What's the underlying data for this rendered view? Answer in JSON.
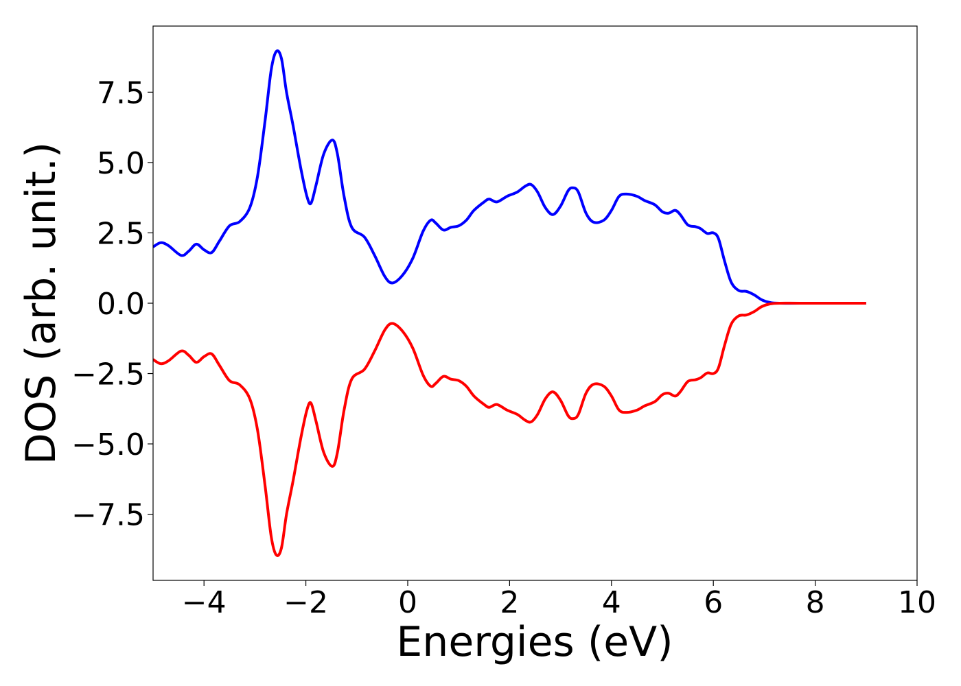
{
  "chart_data": {
    "type": "line",
    "xlabel": "Energies (eV)",
    "ylabel": "DOS (arb. unit.)",
    "xlim": [
      -5,
      10
    ],
    "ylim": [
      -9.85,
      9.85
    ],
    "xticks": [
      -4,
      -2,
      0,
      2,
      4,
      6,
      8,
      10
    ],
    "xtick_labels": [
      "−4",
      "−2",
      "0",
      "2",
      "4",
      "6",
      "8",
      "10"
    ],
    "yticks": [
      7.5,
      5.0,
      2.5,
      0.0,
      -2.5,
      -5.0,
      -7.5
    ],
    "ytick_labels": [
      "7.5",
      "5.0",
      "2.5",
      "0.0",
      "−2.5",
      "−5.0",
      "−7.5"
    ],
    "grid": false,
    "series": [
      {
        "color": "#0000ff",
        "points": [
          [
            -5.0,
            2.0
          ],
          [
            -4.85,
            2.15
          ],
          [
            -4.7,
            2.05
          ],
          [
            -4.45,
            1.7
          ],
          [
            -4.3,
            1.85
          ],
          [
            -4.15,
            2.1
          ],
          [
            -4.0,
            1.9
          ],
          [
            -3.85,
            1.8
          ],
          [
            -3.7,
            2.2
          ],
          [
            -3.5,
            2.75
          ],
          [
            -3.3,
            2.9
          ],
          [
            -3.1,
            3.4
          ],
          [
            -2.95,
            4.5
          ],
          [
            -2.8,
            6.5
          ],
          [
            -2.68,
            8.3
          ],
          [
            -2.58,
            8.95
          ],
          [
            -2.48,
            8.7
          ],
          [
            -2.38,
            7.5
          ],
          [
            -2.25,
            6.3
          ],
          [
            -2.1,
            4.8
          ],
          [
            -1.98,
            3.8
          ],
          [
            -1.9,
            3.55
          ],
          [
            -1.8,
            4.2
          ],
          [
            -1.65,
            5.3
          ],
          [
            -1.48,
            5.8
          ],
          [
            -1.38,
            5.3
          ],
          [
            -1.25,
            3.8
          ],
          [
            -1.1,
            2.7
          ],
          [
            -0.85,
            2.35
          ],
          [
            -0.65,
            1.7
          ],
          [
            -0.45,
            0.95
          ],
          [
            -0.3,
            0.72
          ],
          [
            -0.1,
            1.0
          ],
          [
            0.1,
            1.6
          ],
          [
            0.3,
            2.55
          ],
          [
            0.45,
            2.95
          ],
          [
            0.55,
            2.85
          ],
          [
            0.7,
            2.6
          ],
          [
            0.85,
            2.7
          ],
          [
            1.0,
            2.75
          ],
          [
            1.15,
            2.95
          ],
          [
            1.3,
            3.3
          ],
          [
            1.5,
            3.6
          ],
          [
            1.6,
            3.7
          ],
          [
            1.75,
            3.6
          ],
          [
            1.95,
            3.8
          ],
          [
            2.15,
            3.95
          ],
          [
            2.3,
            4.15
          ],
          [
            2.42,
            4.22
          ],
          [
            2.55,
            3.95
          ],
          [
            2.7,
            3.4
          ],
          [
            2.85,
            3.15
          ],
          [
            3.0,
            3.45
          ],
          [
            3.15,
            4.0
          ],
          [
            3.25,
            4.1
          ],
          [
            3.35,
            3.95
          ],
          [
            3.5,
            3.2
          ],
          [
            3.65,
            2.88
          ],
          [
            3.85,
            2.95
          ],
          [
            4.0,
            3.3
          ],
          [
            4.15,
            3.8
          ],
          [
            4.3,
            3.88
          ],
          [
            4.5,
            3.8
          ],
          [
            4.65,
            3.65
          ],
          [
            4.85,
            3.5
          ],
          [
            5.0,
            3.25
          ],
          [
            5.12,
            3.2
          ],
          [
            5.25,
            3.3
          ],
          [
            5.35,
            3.15
          ],
          [
            5.5,
            2.78
          ],
          [
            5.65,
            2.72
          ],
          [
            5.75,
            2.65
          ],
          [
            5.88,
            2.48
          ],
          [
            6.0,
            2.5
          ],
          [
            6.1,
            2.3
          ],
          [
            6.22,
            1.5
          ],
          [
            6.35,
            0.75
          ],
          [
            6.5,
            0.45
          ],
          [
            6.65,
            0.42
          ],
          [
            6.8,
            0.3
          ],
          [
            6.95,
            0.12
          ],
          [
            7.1,
            0.03
          ],
          [
            7.3,
            0.0
          ],
          [
            8.0,
            0.0
          ],
          [
            9.0,
            0.0
          ]
        ]
      },
      {
        "color": "#ff0000",
        "points": [
          [
            -5.0,
            -2.0
          ],
          [
            -4.85,
            -2.15
          ],
          [
            -4.7,
            -2.05
          ],
          [
            -4.45,
            -1.7
          ],
          [
            -4.3,
            -1.85
          ],
          [
            -4.15,
            -2.1
          ],
          [
            -4.0,
            -1.9
          ],
          [
            -3.85,
            -1.8
          ],
          [
            -3.7,
            -2.2
          ],
          [
            -3.5,
            -2.75
          ],
          [
            -3.3,
            -2.9
          ],
          [
            -3.1,
            -3.4
          ],
          [
            -2.95,
            -4.5
          ],
          [
            -2.8,
            -6.5
          ],
          [
            -2.68,
            -8.3
          ],
          [
            -2.58,
            -8.95
          ],
          [
            -2.48,
            -8.7
          ],
          [
            -2.38,
            -7.5
          ],
          [
            -2.25,
            -6.3
          ],
          [
            -2.1,
            -4.8
          ],
          [
            -1.98,
            -3.8
          ],
          [
            -1.9,
            -3.55
          ],
          [
            -1.8,
            -4.2
          ],
          [
            -1.65,
            -5.3
          ],
          [
            -1.48,
            -5.8
          ],
          [
            -1.38,
            -5.3
          ],
          [
            -1.25,
            -3.8
          ],
          [
            -1.1,
            -2.7
          ],
          [
            -0.85,
            -2.35
          ],
          [
            -0.65,
            -1.7
          ],
          [
            -0.45,
            -0.95
          ],
          [
            -0.3,
            -0.72
          ],
          [
            -0.1,
            -1.0
          ],
          [
            0.1,
            -1.6
          ],
          [
            0.3,
            -2.55
          ],
          [
            0.45,
            -2.95
          ],
          [
            0.55,
            -2.85
          ],
          [
            0.7,
            -2.6
          ],
          [
            0.85,
            -2.7
          ],
          [
            1.0,
            -2.75
          ],
          [
            1.15,
            -2.95
          ],
          [
            1.3,
            -3.3
          ],
          [
            1.5,
            -3.6
          ],
          [
            1.6,
            -3.7
          ],
          [
            1.75,
            -3.6
          ],
          [
            1.95,
            -3.8
          ],
          [
            2.15,
            -3.95
          ],
          [
            2.3,
            -4.15
          ],
          [
            2.42,
            -4.22
          ],
          [
            2.55,
            -3.95
          ],
          [
            2.7,
            -3.4
          ],
          [
            2.85,
            -3.15
          ],
          [
            3.0,
            -3.45
          ],
          [
            3.15,
            -4.0
          ],
          [
            3.25,
            -4.1
          ],
          [
            3.35,
            -3.95
          ],
          [
            3.5,
            -3.2
          ],
          [
            3.65,
            -2.88
          ],
          [
            3.85,
            -2.95
          ],
          [
            4.0,
            -3.3
          ],
          [
            4.15,
            -3.8
          ],
          [
            4.3,
            -3.88
          ],
          [
            4.5,
            -3.8
          ],
          [
            4.65,
            -3.65
          ],
          [
            4.85,
            -3.5
          ],
          [
            5.0,
            -3.25
          ],
          [
            5.12,
            -3.2
          ],
          [
            5.25,
            -3.3
          ],
          [
            5.35,
            -3.15
          ],
          [
            5.5,
            -2.78
          ],
          [
            5.65,
            -2.72
          ],
          [
            5.75,
            -2.65
          ],
          [
            5.88,
            -2.48
          ],
          [
            6.0,
            -2.5
          ],
          [
            6.1,
            -2.3
          ],
          [
            6.22,
            -1.5
          ],
          [
            6.35,
            -0.75
          ],
          [
            6.5,
            -0.45
          ],
          [
            6.65,
            -0.42
          ],
          [
            6.8,
            -0.3
          ],
          [
            6.95,
            -0.12
          ],
          [
            7.1,
            -0.03
          ],
          [
            7.3,
            0.0
          ],
          [
            8.0,
            0.0
          ],
          [
            9.0,
            0.0
          ]
        ]
      }
    ]
  }
}
